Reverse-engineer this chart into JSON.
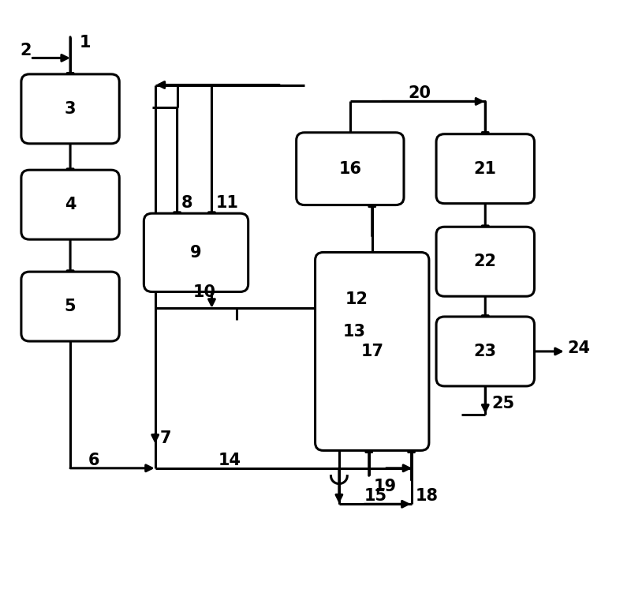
{
  "boxes": {
    "3": [
      0.11,
      0.82,
      0.13,
      0.09
    ],
    "4": [
      0.11,
      0.66,
      0.13,
      0.09
    ],
    "5": [
      0.11,
      0.49,
      0.13,
      0.09
    ],
    "9": [
      0.31,
      0.58,
      0.14,
      0.105
    ],
    "16": [
      0.555,
      0.72,
      0.145,
      0.095
    ],
    "17": [
      0.59,
      0.415,
      0.155,
      0.305
    ],
    "21": [
      0.77,
      0.72,
      0.13,
      0.09
    ],
    "22": [
      0.77,
      0.565,
      0.13,
      0.09
    ],
    "23": [
      0.77,
      0.415,
      0.13,
      0.09
    ]
  },
  "lw": 2.2,
  "fs": 15,
  "asc": 14,
  "bg": "#ffffff"
}
